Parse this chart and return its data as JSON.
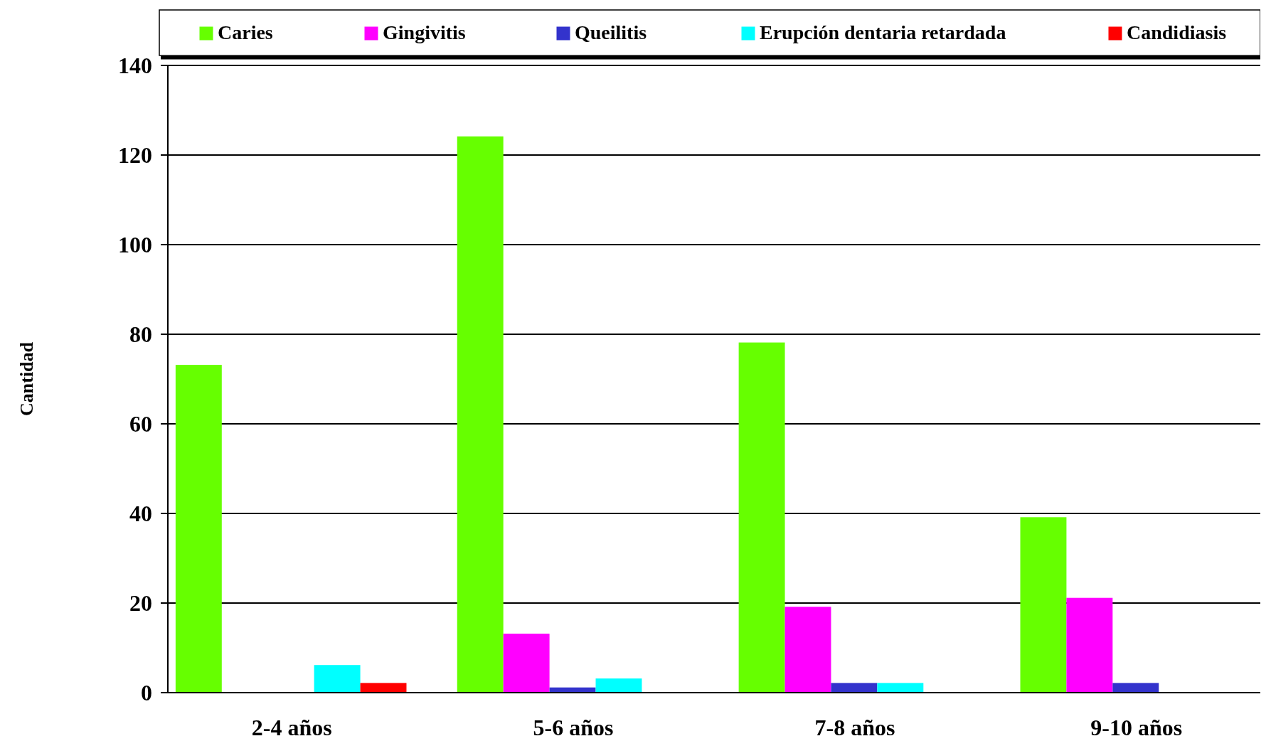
{
  "chart_data": {
    "type": "bar",
    "ylabel": "Cantidad",
    "categories": [
      "2-4 años",
      "5-6 años",
      "7-8 años",
      "9-10 años"
    ],
    "series": [
      {
        "name": "Caries",
        "color": "#66ff00",
        "values": [
          73,
          124,
          78,
          39
        ]
      },
      {
        "name": "Gingivitis",
        "color": "#ff00ff",
        "values": [
          0,
          13,
          19,
          21
        ]
      },
      {
        "name": "Queilitis",
        "color": "#3333cc",
        "values": [
          0,
          1,
          2,
          2
        ]
      },
      {
        "name": "Erupción dentaria retardada",
        "color": "#00ffff",
        "values": [
          6,
          3,
          2,
          0
        ]
      },
      {
        "name": "Candidiasis",
        "color": "#ff0000",
        "values": [
          2,
          0,
          0,
          0
        ]
      }
    ],
    "ylim": [
      0,
      140
    ],
    "yticks": [
      0,
      20,
      40,
      60,
      80,
      100,
      120,
      140
    ],
    "grid": "y",
    "legend": "top"
  }
}
